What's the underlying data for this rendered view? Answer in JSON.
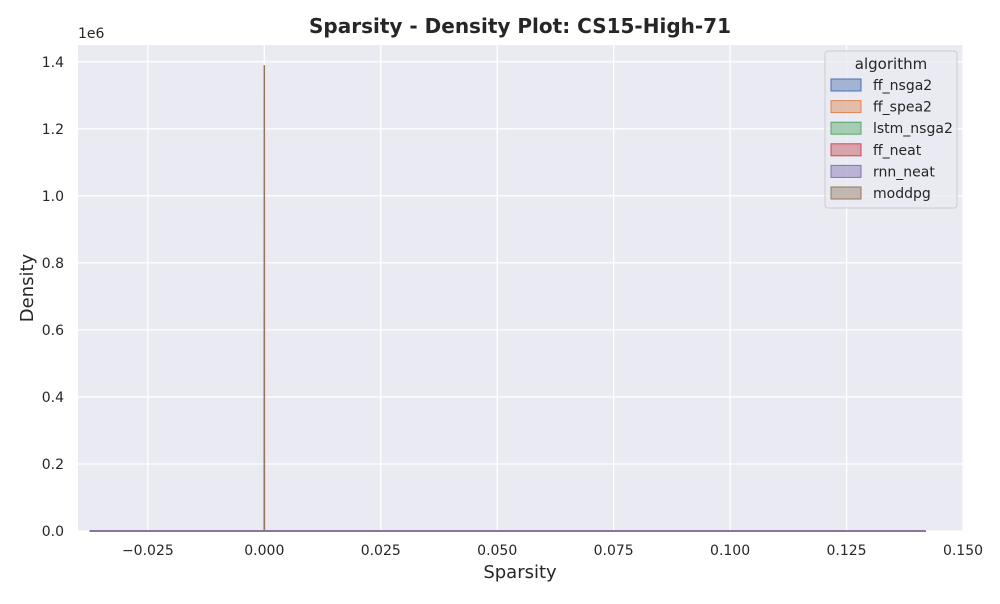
{
  "chart_data": {
    "type": "area",
    "title": "Sparsity - Density Plot: CS15-High-71",
    "xlabel": "Sparsity",
    "ylabel": "Density",
    "y_multiplier_label": "1e6",
    "xlim": [
      -0.04,
      0.15
    ],
    "ylim": [
      0,
      1.45
    ],
    "x_ticks": [
      -0.025,
      0.0,
      0.025,
      0.05,
      0.075,
      0.1,
      0.125,
      0.15
    ],
    "x_tick_labels": [
      "−0.025",
      "0.000",
      "0.025",
      "0.050",
      "0.075",
      "0.100",
      "0.125",
      "0.150"
    ],
    "y_ticks": [
      0.0,
      0.2,
      0.4,
      0.6,
      0.8,
      1.0,
      1.2,
      1.4
    ],
    "y_tick_labels": [
      "0.0",
      "0.2",
      "0.4",
      "0.6",
      "0.8",
      "1.0",
      "1.2",
      "1.4"
    ],
    "grid": true,
    "legend": {
      "title": "algorithm",
      "placement": "top-right"
    },
    "series": [
      {
        "name": "ff_nsga2",
        "color": "#4c72b0",
        "x": [
          -0.0375,
          0.0,
          0.142
        ],
        "y": [
          0.0,
          0.0,
          0.0
        ]
      },
      {
        "name": "ff_spea2",
        "color": "#dd8452",
        "x": [
          -0.0375,
          0.0,
          0.142
        ],
        "y": [
          0.0,
          0.0,
          0.0
        ]
      },
      {
        "name": "lstm_nsga2",
        "color": "#55a868",
        "x": [
          -0.0375,
          0.0,
          0.142
        ],
        "y": [
          0.0,
          0.0,
          0.0
        ]
      },
      {
        "name": "ff_neat",
        "color": "#c44e52",
        "x": [
          -0.0375,
          0.0,
          0.142
        ],
        "y": [
          0.0,
          0.0,
          0.0
        ]
      },
      {
        "name": "rnn_neat",
        "color": "#8172b3",
        "x": [
          -0.0375,
          0.0,
          0.142
        ],
        "y": [
          0.0,
          0.0,
          0.0
        ]
      },
      {
        "name": "moddpg",
        "color": "#937860",
        "x": [
          -2e-05,
          0.0,
          2e-05
        ],
        "y": [
          0.0,
          1.39,
          0.0
        ]
      }
    ]
  }
}
